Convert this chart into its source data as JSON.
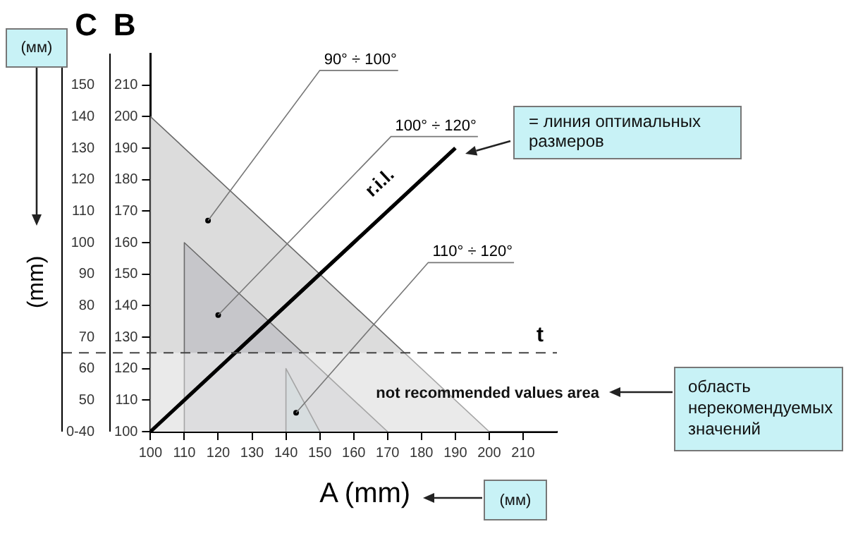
{
  "chart_data": {
    "type": "area",
    "xlabel": "A (mm)",
    "ylabel": "B",
    "y2label": "C",
    "xlim": [
      100,
      220
    ],
    "xticks": [
      100,
      110,
      120,
      130,
      140,
      150,
      160,
      170,
      180,
      190,
      200,
      210
    ],
    "ylim": [
      100,
      220
    ],
    "yticks": [
      100,
      110,
      120,
      130,
      140,
      150,
      160,
      170,
      180,
      190,
      200,
      210
    ],
    "y2lim": [
      40,
      160
    ],
    "y2ticks": [
      {
        "value": 40,
        "label": "0-40"
      },
      50,
      60,
      70,
      80,
      90,
      100,
      110,
      120,
      130,
      140,
      150
    ],
    "series": [
      {
        "name": "90° ÷ 100°",
        "color": "#dcdcdc",
        "x": [
          100,
          100,
          200
        ],
        "values": [
          100,
          200,
          100
        ]
      },
      {
        "name": "100° ÷ 120°",
        "color": "#c6c6ca",
        "x": [
          110,
          110,
          170
        ],
        "values": [
          100,
          160,
          100
        ]
      },
      {
        "name": "110° ÷ 120°",
        "color": "#bcc6ca",
        "x": [
          140,
          140,
          150
        ],
        "values": [
          100,
          120,
          100
        ]
      },
      {
        "name": "r.i.l.",
        "type": "line",
        "color": "#000000",
        "x": [
          100,
          190
        ],
        "values": [
          100,
          190
        ]
      }
    ],
    "ref_lines": [
      {
        "axis": "y",
        "value": 125,
        "label": "t",
        "line_style": "dashed",
        "color": "#444444"
      }
    ],
    "bands": [
      {
        "axis": "y",
        "from": 100,
        "to": 125,
        "label": "not recommended values area",
        "color": "#ffffff"
      }
    ],
    "annotations": [
      "(мм)",
      "(mm)",
      "= линия оптимальных размеров",
      "область нерекомендуемых значений",
      "(мм)"
    ],
    "grid": false,
    "legend": false
  }
}
